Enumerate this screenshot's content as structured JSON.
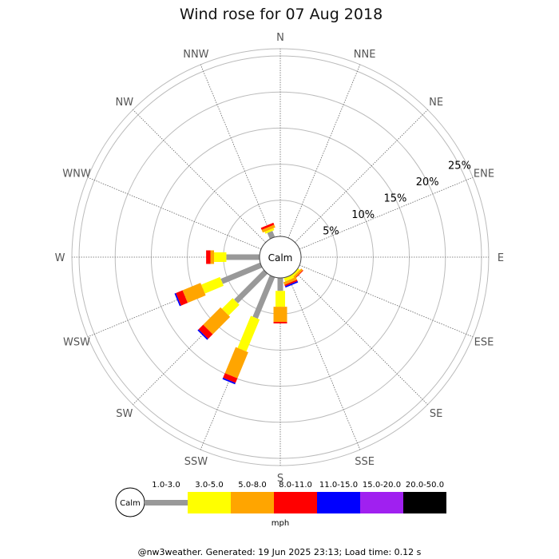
{
  "chart_data": {
    "type": "wind-rose",
    "title": "Wind rose for 07 Aug 2018",
    "directions": [
      "N",
      "NNE",
      "NE",
      "ENE",
      "E",
      "ESE",
      "SE",
      "SSE",
      "S",
      "SSW",
      "SW",
      "WSW",
      "W",
      "WNW",
      "NW",
      "NNW"
    ],
    "ring_labels": [
      "5%",
      "10%",
      "15%",
      "20%",
      "25%"
    ],
    "rings": [
      5,
      10,
      15,
      20,
      25
    ],
    "rmax_percent": 26,
    "calm_label": "Calm",
    "speed_bins": [
      {
        "label": "1.0-3.0",
        "color": "#999999"
      },
      {
        "label": "3.0-5.0",
        "color": "#ffff00"
      },
      {
        "label": "5.0-8.0",
        "color": "#ffa500"
      },
      {
        "label": "8.0-11.0",
        "color": "#ff0000"
      },
      {
        "label": "11.0-15.0",
        "color": "#0000ff"
      },
      {
        "label": "15.0-20.0",
        "color": "#a020f0"
      },
      {
        "label": "20.0-50.0",
        "color": "#000000"
      }
    ],
    "units": "mph",
    "series_percent": {
      "N": [
        0,
        0,
        0,
        0,
        0,
        0,
        0
      ],
      "NNE": [
        0,
        0,
        0,
        0,
        0,
        0,
        0
      ],
      "NE": [
        0,
        0,
        0,
        0,
        0,
        0,
        0
      ],
      "ENE": [
        0,
        0,
        0,
        0,
        0,
        0,
        0
      ],
      "E": [
        0,
        0,
        0,
        0,
        0,
        0,
        0
      ],
      "ESE": [
        0,
        0,
        0,
        0,
        0,
        0,
        0
      ],
      "SE": [
        0,
        0.3,
        0.3,
        0.1,
        0,
        0,
        0
      ],
      "SSE": [
        0,
        0.5,
        0.4,
        0.2,
        0.2,
        0,
        0
      ],
      "S": [
        1.8,
        2.2,
        2.1,
        0.2,
        0,
        0,
        0
      ],
      "SSW": [
        6.2,
        4.8,
        3.9,
        0.7,
        0.2,
        0,
        0
      ],
      "SW": [
        5.8,
        2.1,
        3.4,
        0.9,
        0.2,
        0,
        0
      ],
      "WSW": [
        5.9,
        2.8,
        2.7,
        1.0,
        0.2,
        0,
        0
      ],
      "W": [
        4.6,
        1.7,
        0.5,
        0.6,
        0,
        0,
        0
      ],
      "WNW": [
        0,
        0,
        0,
        0,
        0,
        0,
        0
      ],
      "NW": [
        0,
        0,
        0,
        0,
        0,
        0,
        0
      ],
      "NNW": [
        0.9,
        0.3,
        0.4,
        0.3,
        0,
        0,
        0
      ]
    }
  },
  "footer": "@nw3weather. Generated: 19 Jun 2025 23:13; Load time: 0.12 s"
}
